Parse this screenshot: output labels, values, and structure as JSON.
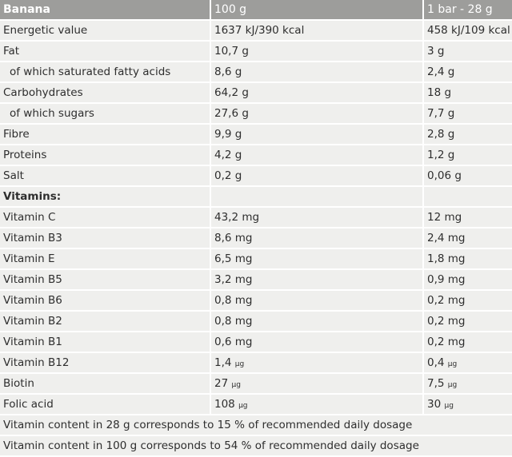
{
  "header": [
    "Banana",
    "100 g",
    "1 bar - 28 g"
  ],
  "rows": [
    {
      "label": "Energetic value",
      "v100": "1637 kJ/390 kcal",
      "vbar": "458 kJ/109 kcal"
    },
    {
      "label": "Fat",
      "v100": "10,7 g",
      "vbar": "3 g"
    },
    {
      "label": "of which saturated fatty acids",
      "v100": "8,6 g",
      "vbar": "2,4 g",
      "indent": true
    },
    {
      "label": "Carbohydrates",
      "v100": "64,2 g",
      "vbar": "18 g"
    },
    {
      "label": "of which sugars",
      "v100": "27,6 g",
      "vbar": "7,7 g",
      "indent": true
    },
    {
      "label": "Fibre",
      "v100": "9,9 g",
      "vbar": "2,8 g"
    },
    {
      "label": "Proteins",
      "v100": "4,2 g",
      "vbar": "1,2 g"
    },
    {
      "label": "Salt",
      "v100": "0,2 g",
      "vbar": "0,06 g"
    },
    {
      "label": "Vitamins:",
      "v100": "",
      "vbar": "",
      "bold": true
    },
    {
      "label": "Vitamin C",
      "v100": "43,2 mg",
      "vbar": "12 mg"
    },
    {
      "label": "Vitamin B3",
      "v100": "8,6 mg",
      "vbar": "2,4 mg"
    },
    {
      "label": "Vitamin E",
      "v100": "6,5 mg",
      "vbar": "1,8 mg"
    },
    {
      "label": "Vitamin B5",
      "v100": "3,2 mg",
      "vbar": "0,9 mg"
    },
    {
      "label": "Vitamin B6",
      "v100": "0,8 mg",
      "vbar": "0,2 mg"
    },
    {
      "label": "Vitamin B2",
      "v100": "0,8 mg",
      "vbar": "0,2 mg"
    },
    {
      "label": "Vitamin B1",
      "v100": "0,6 mg",
      "vbar": "0,2 mg"
    },
    {
      "label": "Vitamin B12",
      "v100": "1,4",
      "vbar": "0,4",
      "unit": "µg"
    },
    {
      "label": "Biotin",
      "v100": "27",
      "vbar": "7,5",
      "unit": "µg"
    },
    {
      "label": "Folic acid",
      "v100": "108",
      "vbar": "30",
      "unit": "µg"
    }
  ],
  "footnotes": [
    "Vitamin content in 28 g corresponds to 15 % of recommended daily dosage",
    "Vitamin content in 100 g corresponds to 54 % of recommended daily dosage"
  ]
}
